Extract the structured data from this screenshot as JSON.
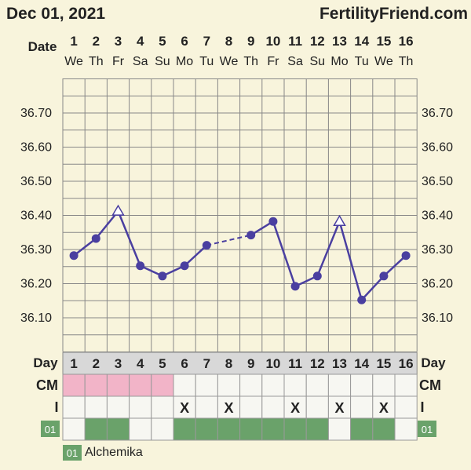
{
  "header": {
    "date": "Dec 01, 2021",
    "site": "FertilityFriend.com"
  },
  "labels": {
    "date_row": "Date",
    "day_row": "Day",
    "cm_row": "CM",
    "i_row": "I"
  },
  "legend": {
    "code": "01",
    "label": "Alchemika"
  },
  "colors": {
    "background": "#f8f4dc",
    "line": "#4a3fa0",
    "grid": "#888888",
    "cm_pink": "#f2b4c8",
    "green": "#6aa26a",
    "cell": "#f7f7f2"
  },
  "chart_data": {
    "type": "line",
    "dates": [
      "1",
      "2",
      "3",
      "4",
      "5",
      "6",
      "7",
      "8",
      "9",
      "10",
      "11",
      "12",
      "13",
      "14",
      "15",
      "16"
    ],
    "weekdays": [
      "We",
      "Th",
      "Fr",
      "Sa",
      "Su",
      "Mo",
      "Tu",
      "We",
      "Th",
      "Fr",
      "Sa",
      "Su",
      "Mo",
      "Tu",
      "We",
      "Th"
    ],
    "days": [
      "1",
      "2",
      "3",
      "4",
      "5",
      "6",
      "7",
      "8",
      "9",
      "10",
      "11",
      "12",
      "13",
      "14",
      "15",
      "16"
    ],
    "yticks": [
      "36.70",
      "36.60",
      "36.50",
      "36.40",
      "36.30",
      "36.20",
      "36.10"
    ],
    "ylim": [
      36.0,
      36.8
    ],
    "temps": [
      36.28,
      36.33,
      36.41,
      36.25,
      36.22,
      36.25,
      36.31,
      null,
      36.34,
      36.38,
      36.19,
      36.22,
      36.38,
      36.15,
      36.22,
      36.28
    ],
    "open_markers": [
      3,
      13
    ],
    "dashed_segment": [
      7,
      9
    ],
    "cm": [
      "pink",
      "pink",
      "pink",
      "pink",
      "pink",
      "",
      "",
      "",
      "",
      "",
      "",
      "",
      "",
      "",
      "",
      ""
    ],
    "i_marks": [
      "",
      "",
      "",
      "",
      "",
      "X",
      "",
      "X",
      "",
      "",
      "X",
      "",
      "X",
      "",
      "X",
      ""
    ],
    "green_row_code": "01",
    "green_row": [
      false,
      true,
      true,
      false,
      false,
      true,
      true,
      true,
      true,
      true,
      true,
      true,
      false,
      true,
      true,
      false
    ]
  }
}
